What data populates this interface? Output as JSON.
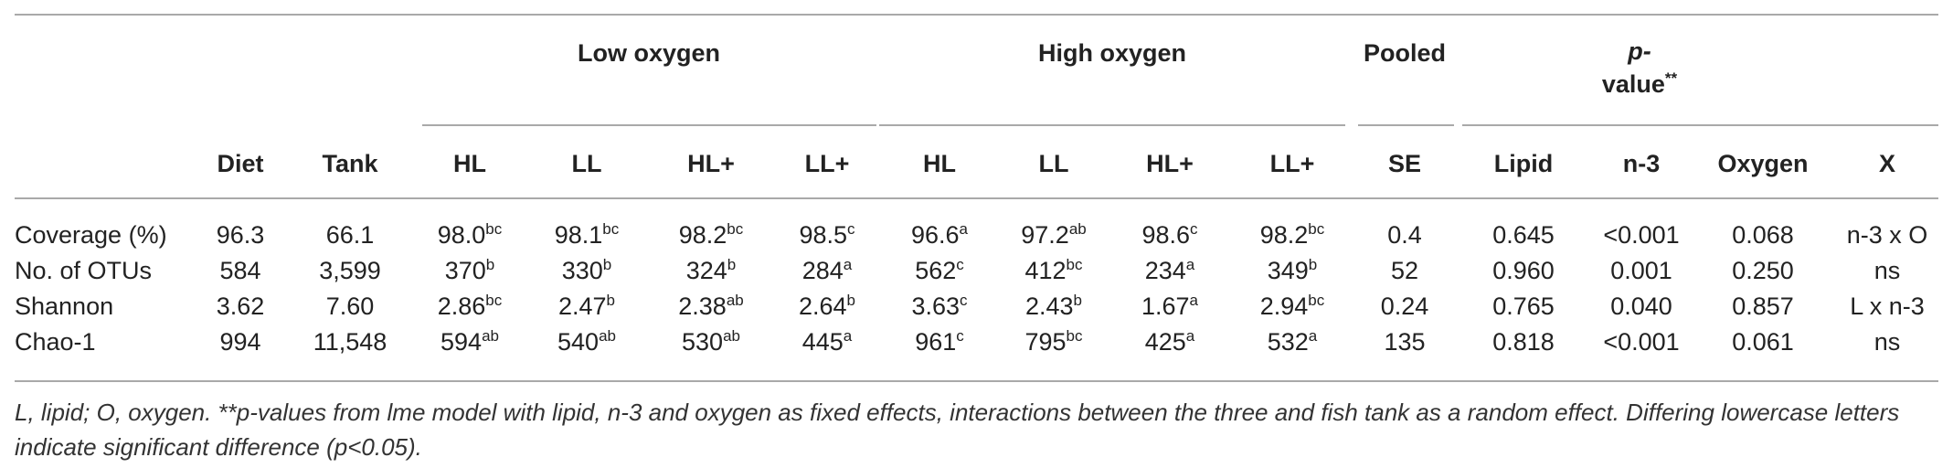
{
  "groups": {
    "low_oxygen": "Low oxygen",
    "high_oxygen": "High oxygen",
    "pooled": "Pooled",
    "pvalue_p": "p-",
    "pvalue_rest": "value",
    "pvalue_mark": "**"
  },
  "columns": [
    "Diet",
    "Tank",
    "HL",
    "LL",
    "HL+",
    "LL+",
    "HL",
    "LL",
    "HL+",
    "LL+",
    "SE",
    "Lipid",
    "n-3",
    "Oxygen",
    "X"
  ],
  "rows": [
    {
      "label": "Coverage (%)",
      "cells": [
        {
          "v": "96.3"
        },
        {
          "v": "66.1"
        },
        {
          "v": "98.0",
          "s": "bc"
        },
        {
          "v": "98.1",
          "s": "bc"
        },
        {
          "v": "98.2",
          "s": "bc"
        },
        {
          "v": "98.5",
          "s": "c"
        },
        {
          "v": "96.6",
          "s": "a"
        },
        {
          "v": "97.2",
          "s": "ab"
        },
        {
          "v": "98.6",
          "s": "c"
        },
        {
          "v": "98.2",
          "s": "bc"
        },
        {
          "v": "0.4"
        },
        {
          "v": "0.645"
        },
        {
          "v": "<0.001"
        },
        {
          "v": "0.068"
        },
        {
          "v": "n-3 x O"
        }
      ]
    },
    {
      "label": "No. of OTUs",
      "cells": [
        {
          "v": "584"
        },
        {
          "v": "3,599"
        },
        {
          "v": "370",
          "s": "b"
        },
        {
          "v": "330",
          "s": "b"
        },
        {
          "v": "324",
          "s": "b"
        },
        {
          "v": "284",
          "s": "a"
        },
        {
          "v": "562",
          "s": "c"
        },
        {
          "v": "412",
          "s": "bc"
        },
        {
          "v": "234",
          "s": "a"
        },
        {
          "v": "349",
          "s": "b"
        },
        {
          "v": "52"
        },
        {
          "v": "0.960"
        },
        {
          "v": "0.001"
        },
        {
          "v": "0.250"
        },
        {
          "v": "ns"
        }
      ]
    },
    {
      "label": "Shannon",
      "cells": [
        {
          "v": "3.62"
        },
        {
          "v": "7.60"
        },
        {
          "v": "2.86",
          "s": "bc"
        },
        {
          "v": "2.47",
          "s": "b"
        },
        {
          "v": "2.38",
          "s": "ab"
        },
        {
          "v": "2.64",
          "s": "b"
        },
        {
          "v": "3.63",
          "s": "c"
        },
        {
          "v": "2.43",
          "s": "b"
        },
        {
          "v": "1.67",
          "s": "a"
        },
        {
          "v": "2.94",
          "s": "bc"
        },
        {
          "v": "0.24"
        },
        {
          "v": "0.765"
        },
        {
          "v": "0.040"
        },
        {
          "v": "0.857"
        },
        {
          "v": "L x n-3"
        }
      ]
    },
    {
      "label": "Chao-1",
      "cells": [
        {
          "v": "994"
        },
        {
          "v": "11,548"
        },
        {
          "v": "594",
          "s": "ab"
        },
        {
          "v": "540",
          "s": "ab"
        },
        {
          "v": "530",
          "s": "ab"
        },
        {
          "v": "445",
          "s": "a"
        },
        {
          "v": "961",
          "s": "c"
        },
        {
          "v": "795",
          "s": "bc"
        },
        {
          "v": "425",
          "s": "a"
        },
        {
          "v": "532",
          "s": "a"
        },
        {
          "v": "135"
        },
        {
          "v": "0.818"
        },
        {
          "v": "<0.001"
        },
        {
          "v": "0.061"
        },
        {
          "v": "ns"
        }
      ]
    }
  ],
  "footnote": "L, lipid; O, oxygen. **p-values from lme model with lipid, n-3 and oxygen as fixed effects, interactions between the three and fish tank as a random effect. Differing lowercase letters indicate significant difference (p<0.05)."
}
